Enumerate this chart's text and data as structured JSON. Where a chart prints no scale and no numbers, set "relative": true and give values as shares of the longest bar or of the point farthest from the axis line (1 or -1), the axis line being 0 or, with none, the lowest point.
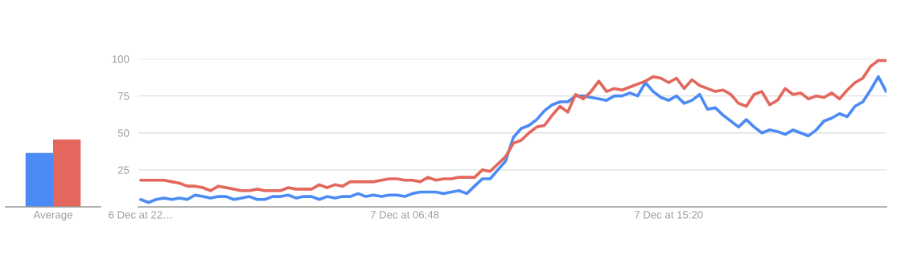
{
  "chart_data": [
    {
      "type": "bar",
      "categories": [
        "Average"
      ],
      "relative": true,
      "tick_labels": "x",
      "series": [
        {
          "color": "#4c8bf5",
          "values": [
            0.8
          ]
        },
        {
          "color": "#e3675c",
          "values": [
            1
          ]
        }
      ]
    },
    {
      "type": "line",
      "grid": "y",
      "marker": "none",
      "line_style": "solid",
      "categories": [
        "6 Dec at 22…",
        null,
        null,
        null,
        null,
        null,
        null,
        null,
        null,
        null,
        null,
        null,
        null,
        null,
        null,
        null,
        null,
        null,
        null,
        null,
        null,
        null,
        null,
        null,
        null,
        null,
        null,
        null,
        null,
        null,
        null,
        null,
        null,
        null,
        "7 Dec at 06:48",
        null,
        null,
        null,
        null,
        null,
        null,
        null,
        null,
        null,
        null,
        null,
        null,
        null,
        null,
        null,
        null,
        null,
        null,
        null,
        null,
        null,
        null,
        null,
        null,
        null,
        null,
        null,
        null,
        null,
        null,
        null,
        null,
        null,
        "7 Dec at 15:20",
        null,
        null,
        null,
        null,
        null,
        null,
        null,
        null,
        null,
        null,
        null,
        null,
        null,
        null,
        null,
        null,
        null,
        null,
        null,
        null,
        null,
        null,
        null,
        null,
        null,
        null,
        null,
        null
      ],
      "ylim": [
        0,
        100
      ],
      "yticks": [
        25,
        50,
        75,
        100
      ],
      "series": [
        {
          "color": "#4c8bf5",
          "values": [
            5,
            3,
            5,
            6,
            5,
            6,
            5,
            8,
            7,
            6,
            7,
            7,
            5,
            6,
            7,
            5,
            5,
            7,
            7,
            8,
            6,
            7,
            7,
            5,
            7,
            6,
            7,
            7,
            9,
            7,
            8,
            7,
            8,
            8,
            7,
            9,
            10,
            10,
            10,
            9,
            10,
            11,
            9,
            14,
            19,
            19,
            25,
            31,
            47,
            53,
            55,
            59,
            65,
            69,
            71,
            71,
            75,
            75,
            74,
            73,
            72,
            75,
            75,
            77,
            75,
            84,
            78,
            74,
            72,
            75,
            70,
            72,
            76,
            66,
            67,
            62,
            58,
            54,
            59,
            54,
            50,
            52,
            51,
            49,
            52,
            50,
            48,
            52,
            58,
            60,
            63,
            61,
            68,
            71,
            79,
            88,
            78
          ]
        },
        {
          "color": "#e3675c",
          "values": [
            18,
            18,
            18,
            18,
            17,
            16,
            14,
            14,
            13,
            11,
            14,
            13,
            12,
            11,
            11,
            12,
            11,
            11,
            11,
            13,
            12,
            12,
            12,
            15,
            13,
            15,
            14,
            17,
            17,
            17,
            17,
            18,
            19,
            19,
            18,
            18,
            17,
            20,
            18,
            19,
            19,
            20,
            20,
            20,
            25,
            24,
            29,
            34,
            43,
            45,
            50,
            54,
            55,
            62,
            68,
            64,
            76,
            73,
            78,
            85,
            78,
            80,
            79,
            81,
            83,
            85,
            88,
            87,
            84,
            87,
            80,
            86,
            82,
            80,
            78,
            79,
            76,
            70,
            68,
            76,
            78,
            69,
            72,
            80,
            76,
            77,
            73,
            75,
            74,
            77,
            73,
            79,
            84,
            87,
            95,
            99,
            99
          ]
        }
      ]
    }
  ]
}
